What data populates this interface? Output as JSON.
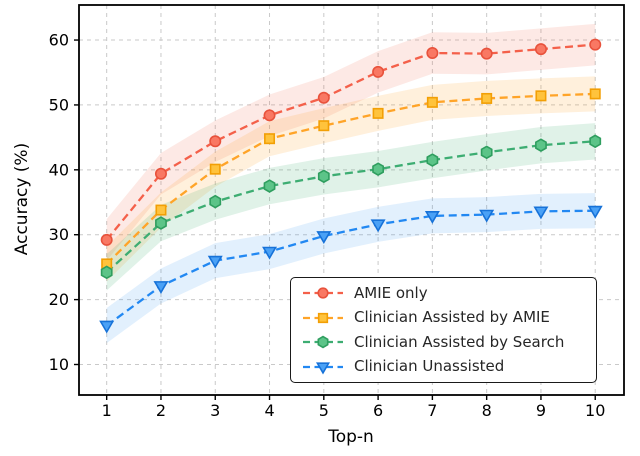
{
  "chart_data": {
    "type": "line",
    "title": "",
    "xlabel": "Top-n",
    "ylabel": "Accuracy (%)",
    "x": [
      1,
      2,
      3,
      4,
      5,
      6,
      7,
      8,
      9,
      10
    ],
    "xticks": [
      1,
      2,
      3,
      4,
      5,
      6,
      7,
      8,
      9,
      10
    ],
    "yticks": [
      10,
      20,
      30,
      40,
      50,
      60
    ],
    "xlim": [
      0.49,
      10.53
    ],
    "ylim": [
      5.3,
      65.4
    ],
    "grid": true,
    "grid_style": "dashed",
    "legend_position": "lower right",
    "line_style": "dashed",
    "series": [
      {
        "name": "AMIE only",
        "marker": "circle",
        "line_color": "#F4604A",
        "marker_fill": "#F97863",
        "marker_edge": "#E8523C",
        "band_color": "rgba(244,96,74,0.14)",
        "band_delta": 3.2,
        "values": [
          29.2,
          39.4,
          44.4,
          48.4,
          51.1,
          55.1,
          58.0,
          57.9,
          58.6,
          59.3
        ]
      },
      {
        "name": "Clinician Assisted by AMIE",
        "marker": "square",
        "line_color": "#FFA428",
        "marker_fill": "#FFC33C",
        "marker_edge": "#F29F05",
        "band_color": "rgba(255,164,40,0.16)",
        "band_delta": 2.7,
        "values": [
          25.5,
          33.8,
          40.1,
          44.8,
          46.8,
          48.7,
          50.4,
          51.0,
          51.4,
          51.7
        ]
      },
      {
        "name": "Clinician Assisted by Search",
        "marker": "hexagon",
        "line_color": "#3DAD72",
        "marker_fill": "#5CC488",
        "marker_edge": "#2F9E5F",
        "band_color": "rgba(61,173,114,0.16)",
        "band_delta": 2.8,
        "values": [
          24.2,
          31.8,
          35.1,
          37.5,
          39.0,
          40.1,
          41.5,
          42.7,
          43.8,
          44.4
        ]
      },
      {
        "name": "Clinician Unassisted",
        "marker": "triangle-down",
        "line_color": "#2288F2",
        "marker_fill": "#4AA1F6",
        "marker_edge": "#1772D8",
        "band_color": "rgba(34,136,242,0.13)",
        "band_delta": 2.7,
        "values": [
          16.0,
          22.1,
          26.0,
          27.4,
          29.8,
          31.6,
          32.9,
          33.1,
          33.6,
          33.7
        ]
      }
    ],
    "colors": {
      "grid": "#c9c9c9",
      "spine": "#000000",
      "tick_label": "#000000",
      "background": "#ffffff"
    }
  }
}
